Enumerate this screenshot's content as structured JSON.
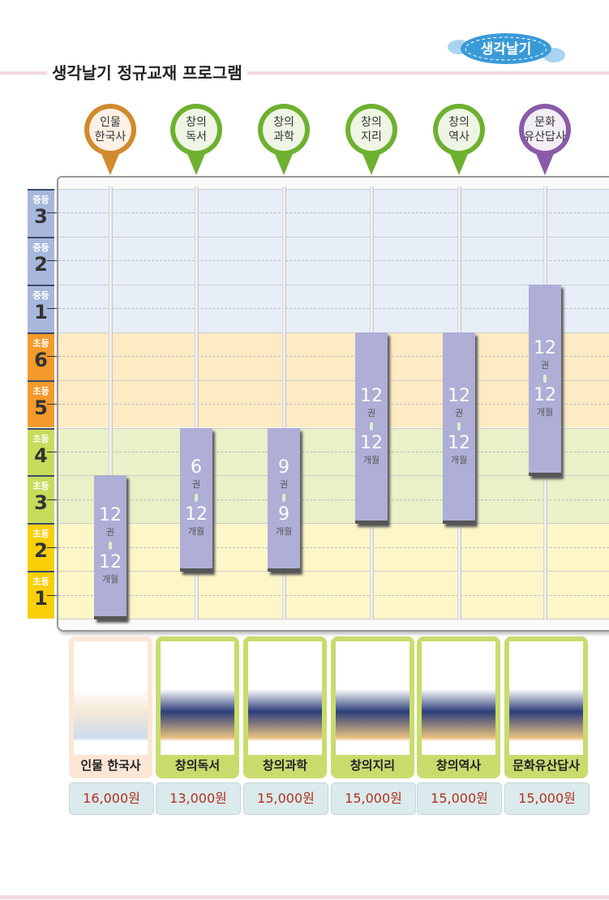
{
  "header": {
    "title": "생각날기 정규교재 프로그램",
    "logo_text": "생각날기"
  },
  "grades": [
    {
      "stage": "중등",
      "num": "3",
      "color": "#a8b8dc",
      "band": "#e8eef8"
    },
    {
      "stage": "중등",
      "num": "2",
      "color": "#a8b8dc",
      "band": "#e8eef8"
    },
    {
      "stage": "중등",
      "num": "1",
      "color": "#a8b8dc",
      "band": "#e8eef8"
    },
    {
      "stage": "초등",
      "num": "6",
      "color": "#f39a2a",
      "band": "#fdebc4"
    },
    {
      "stage": "초등",
      "num": "5",
      "color": "#f39a2a",
      "band": "#fdebc4"
    },
    {
      "stage": "초등",
      "num": "4",
      "color": "#c9db5c",
      "band": "#eaf1c8"
    },
    {
      "stage": "초등",
      "num": "3",
      "color": "#c9db5c",
      "band": "#eaf1c8"
    },
    {
      "stage": "초등",
      "num": "2",
      "color": "#f9cf08",
      "band": "#fdf6c8"
    },
    {
      "stage": "초등",
      "num": "1",
      "color": "#f9cf08",
      "band": "#fdf6c8"
    }
  ],
  "programs": [
    {
      "pin_line1": "인물",
      "pin_line2": "한국사",
      "pin_color": "#d18a2c",
      "pin_inner": "#fdf0e4",
      "grade_from": "초등1",
      "grade_to": "초등3",
      "books": "12",
      "books_unit": "권",
      "months": "12",
      "months_unit": "개월",
      "card_name": "인물 한국사",
      "price": "16,000원",
      "card_color": "#fde6d6"
    },
    {
      "pin_line1": "창의",
      "pin_line2": "독서",
      "pin_color": "#6eb030",
      "pin_inner": "#eef5e4",
      "grade_from": "초등2",
      "grade_to": "초등4",
      "books": "6",
      "books_unit": "권",
      "months": "12",
      "months_unit": "개월",
      "card_name": "창의독서",
      "price": "13,000원",
      "card_color": "#c8dc6e"
    },
    {
      "pin_line1": "창의",
      "pin_line2": "과학",
      "pin_color": "#6eb030",
      "pin_inner": "#eef5e4",
      "grade_from": "초등2",
      "grade_to": "초등4",
      "books": "9",
      "books_unit": "권",
      "months": "9",
      "months_unit": "개월",
      "card_name": "창의과학",
      "price": "15,000원",
      "card_color": "#c8dc6e"
    },
    {
      "pin_line1": "창의",
      "pin_line2": "지리",
      "pin_color": "#6eb030",
      "pin_inner": "#eef5e4",
      "grade_from": "초등3",
      "grade_to": "초등6",
      "books": "12",
      "books_unit": "권",
      "months": "12",
      "months_unit": "개월",
      "card_name": "창의지리",
      "price": "15,000원",
      "card_color": "#c8dc6e"
    },
    {
      "pin_line1": "창의",
      "pin_line2": "역사",
      "pin_color": "#6eb030",
      "pin_inner": "#eef5e4",
      "grade_from": "초등3",
      "grade_to": "초등6",
      "books": "12",
      "books_unit": "권",
      "months": "12",
      "months_unit": "개월",
      "card_name": "창의역사",
      "price": "15,000원",
      "card_color": "#c8dc6e"
    },
    {
      "pin_line1": "문화",
      "pin_line2": "유산답사",
      "pin_color": "#8a5aa8",
      "pin_inner": "#f3eef6",
      "grade_from": "초등4",
      "grade_to": "중등1",
      "books": "12",
      "books_unit": "권",
      "months": "12",
      "months_unit": "개월",
      "card_name": "문화유산답사",
      "price": "15,000원",
      "card_color": "#c8dc6e"
    }
  ]
}
